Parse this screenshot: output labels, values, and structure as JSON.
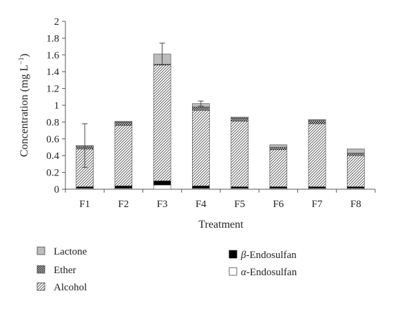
{
  "chart_data": {
    "type": "bar",
    "stacked": true,
    "xlabel": "Treatment",
    "ylabel": "Concentration (mg L",
    "ylabel_sup": "−1",
    "ylabel_close": ")",
    "ylim": [
      0,
      2
    ],
    "yticks": [
      "0",
      "0.2",
      "0.4",
      "0.6",
      "0.8",
      "1",
      "1.2",
      "1.4",
      "1.6",
      "1.8",
      "2"
    ],
    "categories": [
      "F1",
      "F2",
      "F3",
      "F4",
      "F5",
      "F6",
      "F7",
      "F8"
    ],
    "series": [
      {
        "name": "α-Endosulfan",
        "prefix": "α",
        "suffix": "-Endosulfan",
        "pattern": "white",
        "values": [
          0.01,
          0.01,
          0.05,
          0.01,
          0.01,
          0.01,
          0.01,
          0.01
        ]
      },
      {
        "name": "β-Endosulfan",
        "prefix": "β",
        "suffix": "-Endosulfan",
        "pattern": "black",
        "values": [
          0.02,
          0.03,
          0.05,
          0.03,
          0.02,
          0.02,
          0.02,
          0.02
        ]
      },
      {
        "name": "Alcohol",
        "pattern": "hatch",
        "values": [
          0.45,
          0.72,
          1.38,
          0.9,
          0.78,
          0.44,
          0.75,
          0.37
        ]
      },
      {
        "name": "Ether",
        "pattern": "dots",
        "values": [
          0.03,
          0.04,
          0.01,
          0.04,
          0.04,
          0.03,
          0.04,
          0.03
        ]
      },
      {
        "name": "Lactone",
        "pattern": "gray",
        "values": [
          0.01,
          0.01,
          0.12,
          0.04,
          0.01,
          0.03,
          0.01,
          0.05
        ]
      }
    ],
    "error_bars_top": [
      0.78,
      null,
      1.74,
      1.05,
      null,
      null,
      null,
      null
    ],
    "legend": {
      "left": [
        "Lactone",
        "Ether",
        "Alcohol"
      ],
      "right": [
        "β-Endosulfan",
        "α-Endosulfan"
      ]
    },
    "grid": false,
    "legend_position": "bottom"
  }
}
